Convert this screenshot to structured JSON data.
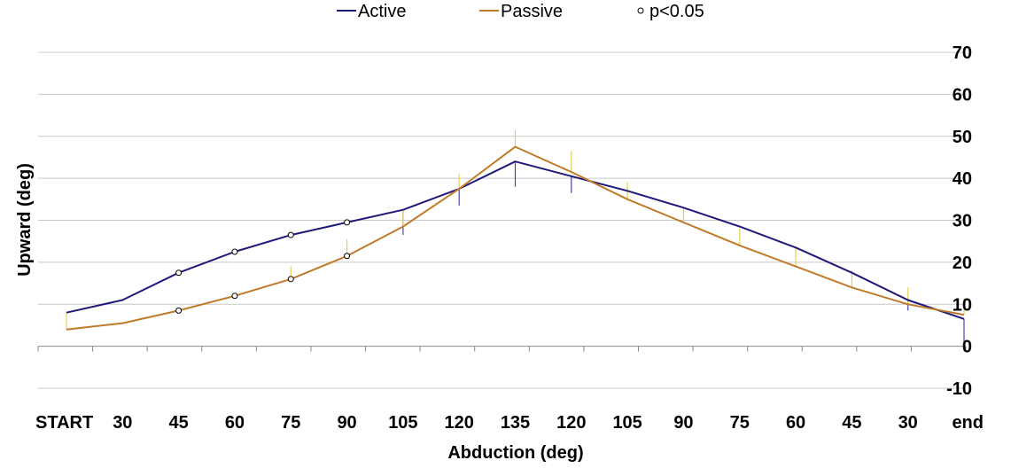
{
  "chart_data": {
    "type": "line",
    "categories": [
      "START",
      "30",
      "45",
      "60",
      "75",
      "90",
      "105",
      "120",
      "135",
      "120",
      "105",
      "90",
      "75",
      "60",
      "45",
      "30",
      "end"
    ],
    "xlabel": "Abduction (deg)",
    "ylabel": "Upward  (deg)",
    "ylim": [
      -10,
      70
    ],
    "yticks": [
      -10,
      0,
      10,
      20,
      30,
      40,
      50,
      60,
      70
    ],
    "ytick_labels": [
      "-10",
      "0",
      "10",
      "20",
      "30",
      "40",
      "50",
      "60",
      "70"
    ],
    "grid": true,
    "legend_position": "top",
    "legend": {
      "active_label": "Active",
      "passive_label": "Passive",
      "sig_label": "p<0.05"
    },
    "series": [
      {
        "name": "Active",
        "color": "#1f1a7a",
        "values": [
          8,
          11,
          17.5,
          22.5,
          26.5,
          29.5,
          32.5,
          37.5,
          44,
          40.5,
          37,
          33,
          28.5,
          23.5,
          17.5,
          11,
          6.5
        ],
        "error_minus": [
          0,
          0,
          0,
          0,
          0,
          0,
          6,
          4,
          6,
          4,
          0,
          0,
          0,
          0,
          0,
          2.5,
          6.5
        ],
        "error_plus": [
          0,
          0,
          0,
          0,
          0,
          0,
          0,
          0,
          0,
          0,
          0,
          0,
          0,
          0,
          0,
          0,
          0
        ]
      },
      {
        "name": "Passive",
        "color": "#c07a2a",
        "values": [
          4,
          5.5,
          8.5,
          12,
          16,
          21.5,
          28.5,
          37.5,
          47.5,
          41.5,
          35,
          29.5,
          24,
          19,
          14,
          10,
          7.5
        ],
        "error_minus": [
          0,
          0,
          0,
          0,
          0,
          0,
          0,
          0,
          0,
          0,
          0,
          0,
          0,
          0,
          0,
          0,
          0
        ],
        "error_plus": [
          4,
          0,
          0,
          0,
          3,
          4,
          4,
          3.5,
          4,
          5,
          4,
          3.5,
          4,
          4.5,
          4,
          4,
          4
        ]
      }
    ],
    "significant_indices": [
      2,
      3,
      4,
      5
    ]
  }
}
